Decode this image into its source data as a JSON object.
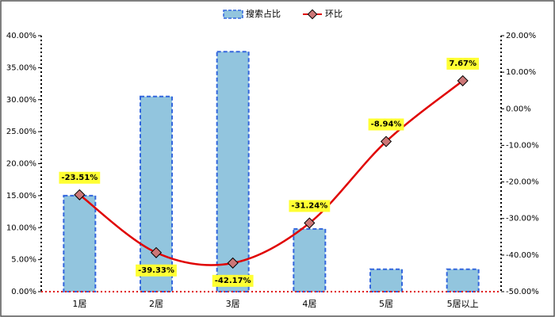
{
  "chart_data": {
    "type": "bar",
    "categories": [
      "1居",
      "2居",
      "3居",
      "4居",
      "5居",
      "5居以上"
    ],
    "series": [
      {
        "name": "搜索占比",
        "type": "bar",
        "color": "#92c5de",
        "values": [
          15.0,
          30.5,
          37.5,
          9.8,
          3.5,
          3.5
        ]
      },
      {
        "name": "环比",
        "type": "line",
        "axis": "y2",
        "color": "#e00000",
        "values": [
          -23.51,
          -39.33,
          -42.17,
          -31.24,
          -8.94,
          7.67
        ],
        "value_labels": [
          "-23.51%",
          "-39.33%",
          "-42.17%",
          "-31.24%",
          "-8.94%",
          "7.67%"
        ]
      }
    ],
    "ylim": [
      0,
      40
    ],
    "yticks": [
      {
        "value": 0,
        "label": "0.00%"
      },
      {
        "value": 5,
        "label": "5.00%"
      },
      {
        "value": 10,
        "label": "10.00%"
      },
      {
        "value": 15,
        "label": "15.00%"
      },
      {
        "value": 20,
        "label": "20.00%"
      },
      {
        "value": 25,
        "label": "25.00%"
      },
      {
        "value": 30,
        "label": "30.00%"
      },
      {
        "value": 35,
        "label": "35.00%"
      },
      {
        "value": 40,
        "label": "40.00%"
      }
    ],
    "y2lim": [
      -50,
      20
    ],
    "y2ticks": [
      {
        "value": -50,
        "label": "-50.00%"
      },
      {
        "value": -40,
        "label": "-40.00%"
      },
      {
        "value": -30,
        "label": "-30.00%"
      },
      {
        "value": -20,
        "label": "-20.00%"
      },
      {
        "value": -10,
        "label": "-10.00%"
      },
      {
        "value": 0,
        "label": "0.00%"
      },
      {
        "value": 10,
        "label": "10.00%"
      },
      {
        "value": 20,
        "label": "20.00%"
      }
    ],
    "legend": "top"
  }
}
